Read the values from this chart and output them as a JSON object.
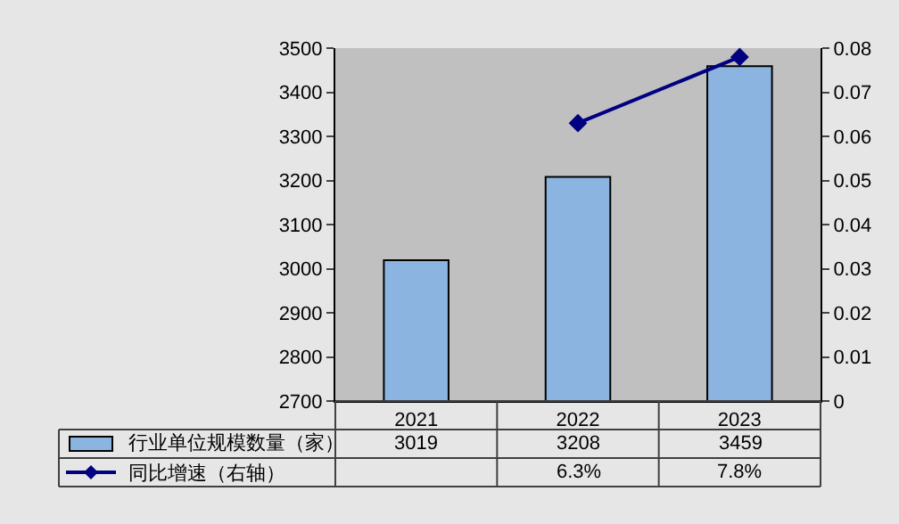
{
  "chart_data": {
    "type": "bar",
    "categories": [
      "2021",
      "2022",
      "2023"
    ],
    "series": [
      {
        "name": "行业单位规模数量（家）",
        "color": "#8cb4e0",
        "values": [
          3019,
          3208,
          3459
        ],
        "value_labels": [
          "3019",
          "3208",
          "3459"
        ]
      },
      {
        "name": "同比增速（右轴）",
        "type": "line",
        "axis": "y2",
        "color": "#000080",
        "values": [
          null,
          0.063,
          0.078
        ],
        "value_labels": [
          null,
          "6.3%",
          "7.8%"
        ]
      }
    ],
    "ylim": [
      2700,
      3500
    ],
    "yticks": [
      2700,
      2800,
      2900,
      3000,
      3100,
      3200,
      3300,
      3400,
      3500
    ],
    "y2lim": [
      0,
      0.08
    ],
    "y2ticks": [
      0,
      0.01,
      0.02,
      0.03,
      0.04,
      0.05,
      0.06,
      0.07,
      0.08
    ],
    "marker": "diamond",
    "line_style": "solid",
    "grid": false,
    "legend": "bottom left"
  }
}
